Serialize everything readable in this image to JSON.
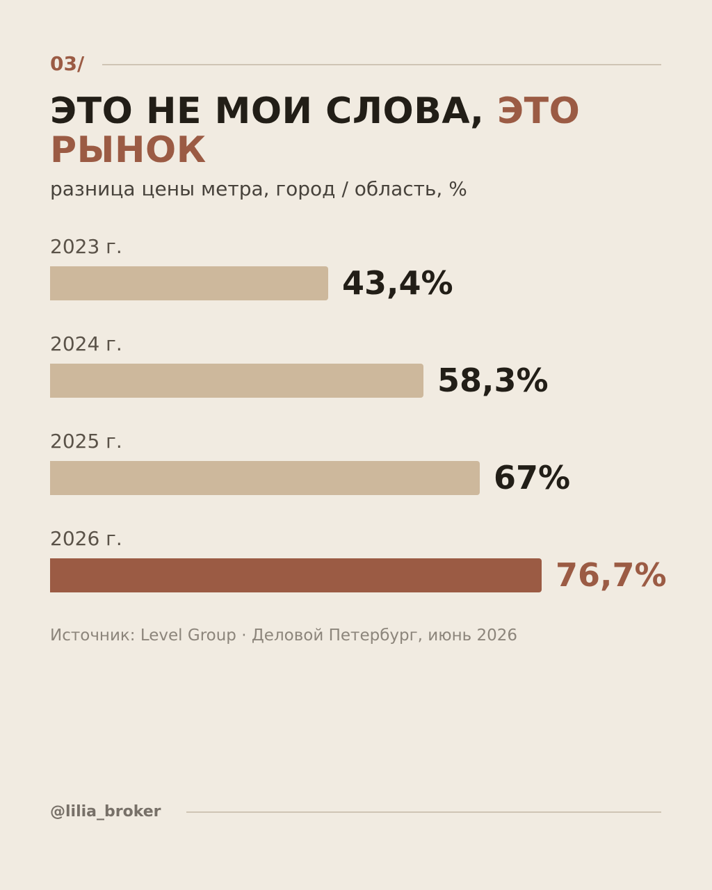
{
  "header": {
    "slide_number": "03/",
    "title_main": "ЭТО НЕ МОИ СЛОВА, ",
    "title_accent": "ЭТО РЫНОК",
    "subtitle": "разница цены метра, город / область, %"
  },
  "chart_data": {
    "type": "bar",
    "orientation": "horizontal",
    "categories": [
      "2023 г.",
      "2024 г.",
      "2025 г.",
      "2026 г."
    ],
    "values": [
      43.4,
      58.3,
      67,
      76.7
    ],
    "value_labels": [
      "43,4%",
      "58,3%",
      "67%",
      "76,7%"
    ],
    "highlight_index": 3,
    "title": "ЭТО НЕ МОИ СЛОВА, ЭТО РЫНОК",
    "subtitle": "разница цены метра, город / область, %",
    "colors": {
      "bar": "#cdb89c",
      "highlight": "#9b5b44"
    }
  },
  "footer": {
    "source": "Источник: Level Group · Деловой Петербург, июнь 2026",
    "handle": "@lilia_broker"
  },
  "colors": {
    "background": "#f1ebe1",
    "accent": "#9b5b44",
    "text": "#221e17"
  }
}
